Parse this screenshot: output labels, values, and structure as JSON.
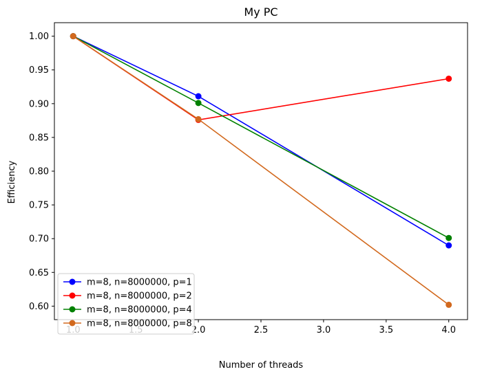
{
  "chart_data": {
    "type": "line",
    "title": "My PC",
    "xlabel": "Number of threads",
    "ylabel": "Efficiency",
    "xlim": [
      0.85,
      4.15
    ],
    "ylim": [
      0.58,
      1.02
    ],
    "xticks": [
      1.0,
      1.5,
      2.0,
      2.5,
      3.0,
      3.5,
      4.0
    ],
    "xtick_labels": [
      "1.0",
      "1.5",
      "2.0",
      "2.5",
      "3.0",
      "3.5",
      "4.0"
    ],
    "yticks": [
      0.6,
      0.65,
      0.7,
      0.75,
      0.8,
      0.85,
      0.9,
      0.95,
      1.0
    ],
    "ytick_labels": [
      "0.60",
      "0.65",
      "0.70",
      "0.75",
      "0.80",
      "0.85",
      "0.90",
      "0.95",
      "1.00"
    ],
    "grid": false,
    "legend_position": "lower-left",
    "x": [
      1,
      2,
      4
    ],
    "series": [
      {
        "name": "m=8, n=8000000, p=1",
        "color": "#0000ff",
        "values": [
          1.0,
          0.911,
          0.69
        ]
      },
      {
        "name": "m=8, n=8000000, p=2",
        "color": "#ff0000",
        "values": [
          1.0,
          0.876,
          0.937
        ]
      },
      {
        "name": "m=8, n=8000000, p=4",
        "color": "#008000",
        "values": [
          1.0,
          0.901,
          0.701
        ]
      },
      {
        "name": "m=8, n=8000000, p=8",
        "color": "#d2691e",
        "values": [
          1.0,
          0.877,
          0.602
        ]
      }
    ]
  }
}
